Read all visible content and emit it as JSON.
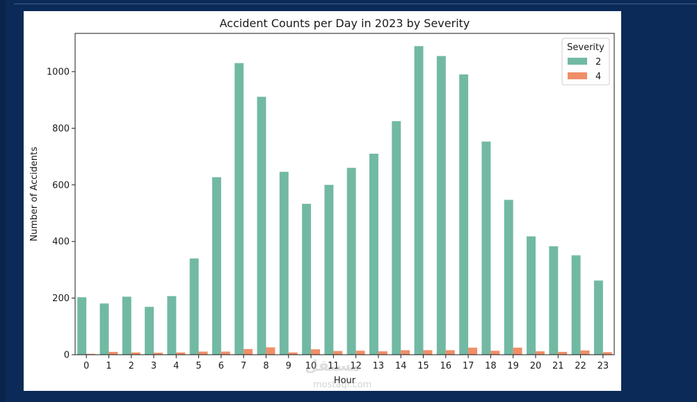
{
  "chart_data": {
    "type": "bar",
    "title": "Accident Counts per Day in 2023 by Severity",
    "xlabel": "Hour",
    "ylabel": "Number of Accidents",
    "categories": [
      "0",
      "1",
      "2",
      "3",
      "4",
      "5",
      "6",
      "7",
      "8",
      "9",
      "10",
      "11",
      "12",
      "13",
      "14",
      "15",
      "16",
      "17",
      "18",
      "19",
      "20",
      "21",
      "22",
      "23"
    ],
    "ylim": [
      0,
      1135
    ],
    "yticks": [
      0,
      200,
      400,
      600,
      800,
      1000
    ],
    "legend_title": "Severity",
    "legend_position": "top-right",
    "series": [
      {
        "name": "2",
        "color": "#72b9a4",
        "values": [
          203,
          181,
          205,
          169,
          207,
          340,
          627,
          1030,
          911,
          646,
          533,
          600,
          660,
          710,
          825,
          1090,
          1055,
          990,
          753,
          547,
          418,
          383,
          351,
          262
        ]
      },
      {
        "name": "4",
        "color": "#f08e68",
        "values": [
          3,
          10,
          8,
          7,
          8,
          11,
          11,
          20,
          26,
          8,
          19,
          13,
          14,
          12,
          16,
          16,
          16,
          25,
          14,
          25,
          12,
          10,
          15,
          9
        ]
      }
    ]
  },
  "watermark": {
    "text": "مستقل",
    "subtext": "mostaql.com"
  }
}
